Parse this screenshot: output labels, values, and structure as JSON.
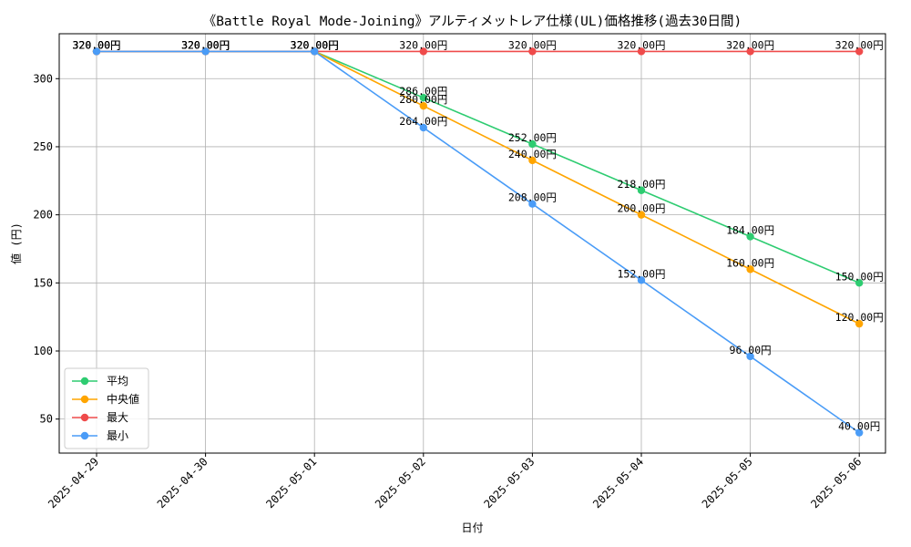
{
  "chart_data": {
    "type": "line",
    "title": "《Battle Royal Mode-Joining》アルティメットレア仕様(UL)価格推移(過去30日間)",
    "xlabel": "日付",
    "ylabel": "値 (円)",
    "categories": [
      "2025-04-29",
      "2025-04-30",
      "2025-05-01",
      "2025-05-02",
      "2025-05-03",
      "2025-05-04",
      "2025-05-05",
      "2025-05-06"
    ],
    "yticks": [
      50,
      100,
      150,
      200,
      250,
      300
    ],
    "ylim": [
      25,
      333
    ],
    "grid": true,
    "legend_position": "lower-left",
    "value_suffix": "円",
    "series": [
      {
        "name": "平均",
        "color": "#2ecc71",
        "values": [
          320,
          320,
          320,
          286,
          252,
          218,
          184,
          150
        ],
        "labels": [
          "320.00円",
          "320.00円",
          "320.00円",
          "286.00円",
          "252.00円",
          "218.00円",
          "184.00円",
          "150.00円"
        ]
      },
      {
        "name": "中央値",
        "color": "#ffa500",
        "values": [
          320,
          320,
          320,
          280,
          240,
          200,
          160,
          120
        ],
        "labels": [
          "320.00円",
          "320.00円",
          "320.00円",
          "280.00円",
          "240.00円",
          "200.00円",
          "160.00円",
          "120.00円"
        ]
      },
      {
        "name": "最大",
        "color": "#ef4b4b",
        "values": [
          320,
          320,
          320,
          320,
          320,
          320,
          320,
          320
        ],
        "labels": [
          "320.00円",
          "320.00円",
          "320.00円",
          "320.00円",
          "320.00円",
          "320.00円",
          "320.00円",
          "320.00円"
        ]
      },
      {
        "name": "最小",
        "color": "#4a9cf7",
        "values": [
          320,
          320,
          320,
          264,
          208,
          152,
          96,
          40
        ],
        "labels": [
          "320.00円",
          "320.00円",
          "320.00円",
          "264.00円",
          "208.00円",
          "152.00円",
          "96.00円",
          "40.00円"
        ]
      }
    ]
  }
}
